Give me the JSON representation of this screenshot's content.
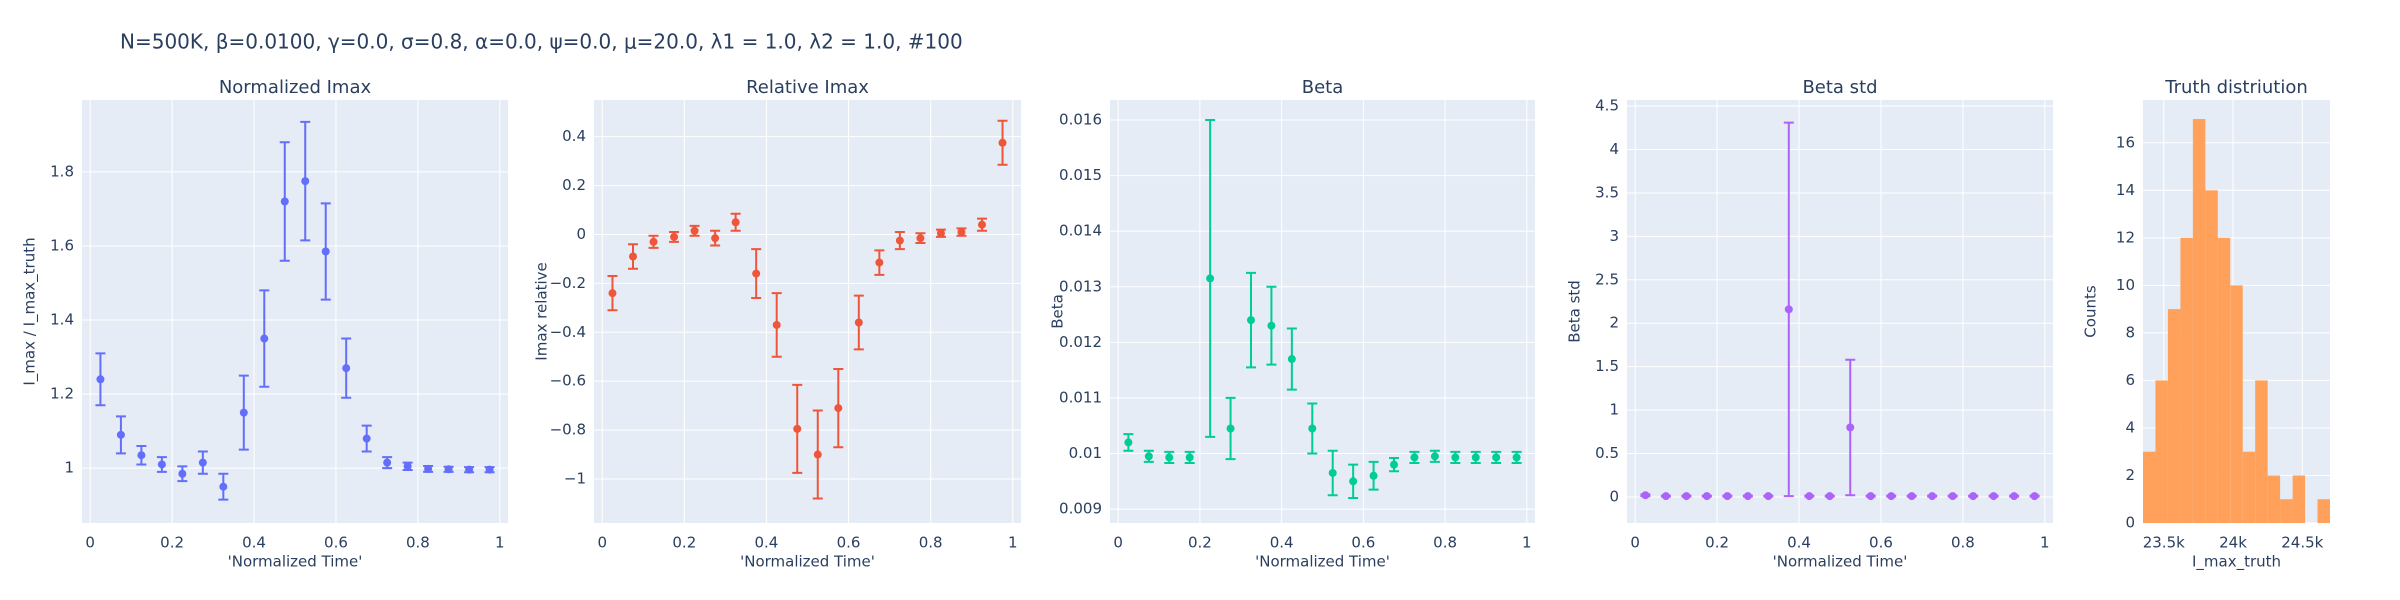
{
  "title": "N=500K, β=0.0100, γ=0.0, σ=0.8,  α=0.0, ψ=0.0, μ=20.0, λ1 = 1.0, λ2 = 1.0, #100",
  "chart_data": [
    {
      "type": "scatter",
      "title": "Normalized Imax",
      "x_label": "'Normalized Time'",
      "y_label": "I_max / I_max_truth",
      "color": "#636efa",
      "grid": true,
      "x": [
        0.025,
        0.075,
        0.125,
        0.175,
        0.225,
        0.275,
        0.325,
        0.375,
        0.425,
        0.475,
        0.525,
        0.575,
        0.625,
        0.675,
        0.725,
        0.775,
        0.825,
        0.875,
        0.925,
        0.975
      ],
      "values": [
        1.24,
        1.09,
        1.035,
        1.01,
        0.985,
        1.015,
        0.95,
        1.15,
        1.35,
        1.72,
        1.775,
        1.585,
        1.27,
        1.08,
        1.015,
        1.005,
        0.998,
        0.997,
        0.996,
        0.996
      ],
      "errors": [
        0.07,
        0.05,
        0.025,
        0.02,
        0.02,
        0.03,
        0.035,
        0.1,
        0.13,
        0.16,
        0.16,
        0.13,
        0.08,
        0.035,
        0.015,
        0.01,
        0.008,
        0.007,
        0.007,
        0.007
      ],
      "xlim": [
        -0.02,
        1.02
      ],
      "xticks": [
        0,
        0.2,
        0.4,
        0.6,
        0.8,
        1
      ],
      "ylim": [
        0.852,
        1.994
      ],
      "yticks": [
        1,
        1.2,
        1.4,
        1.6,
        1.8
      ]
    },
    {
      "type": "scatter",
      "title": "Relative Imax",
      "x_label": "'Normalized Time'",
      "y_label": "Imax relative",
      "color": "#EF553B",
      "grid": true,
      "x": [
        0.025,
        0.075,
        0.125,
        0.175,
        0.225,
        0.275,
        0.325,
        0.375,
        0.425,
        0.475,
        0.525,
        0.575,
        0.625,
        0.675,
        0.725,
        0.775,
        0.825,
        0.875,
        0.925,
        0.975
      ],
      "values": [
        -0.24,
        -0.09,
        -0.03,
        -0.01,
        0.015,
        -0.015,
        0.05,
        -0.16,
        -0.37,
        -0.795,
        -0.9,
        -0.71,
        -0.36,
        -0.115,
        -0.025,
        -0.015,
        0.005,
        0.01,
        0.04,
        0.375
      ],
      "errors": [
        0.07,
        0.05,
        0.025,
        0.02,
        0.02,
        0.03,
        0.035,
        0.1,
        0.13,
        0.18,
        0.18,
        0.16,
        0.11,
        0.05,
        0.035,
        0.02,
        0.015,
        0.015,
        0.025,
        0.09
      ],
      "xlim": [
        -0.02,
        1.02
      ],
      "xticks": [
        0,
        0.2,
        0.4,
        0.6,
        0.8,
        1
      ],
      "ylim": [
        -1.18,
        0.55
      ],
      "yticks": [
        {
          "value": -1,
          "label": "−1"
        },
        {
          "value": -0.8,
          "label": "−0.8"
        },
        {
          "value": -0.6,
          "label": "−0.6"
        },
        {
          "value": -0.4,
          "label": "−0.4"
        },
        {
          "value": -0.2,
          "label": "−0.2"
        },
        0,
        0.2,
        0.4
      ]
    },
    {
      "type": "scatter",
      "title": "Beta",
      "x_label": "'Normalized Time'",
      "y_label": "Beta",
      "color": "#00cc96",
      "grid": true,
      "x": [
        0.025,
        0.075,
        0.125,
        0.175,
        0.225,
        0.275,
        0.325,
        0.375,
        0.425,
        0.475,
        0.525,
        0.575,
        0.625,
        0.675,
        0.725,
        0.775,
        0.825,
        0.875,
        0.925,
        0.975
      ],
      "values": [
        0.0102,
        0.00995,
        0.00993,
        0.00993,
        0.01315,
        0.01045,
        0.0124,
        0.0123,
        0.0117,
        0.01045,
        0.00965,
        0.0095,
        0.0096,
        0.0098,
        0.00993,
        0.00995,
        0.00993,
        0.00993,
        0.00993,
        0.00993
      ],
      "errors": [
        0.00015,
        0.0001,
        0.0001,
        0.0001,
        0.00285,
        0.00055,
        0.00085,
        0.0007,
        0.00055,
        0.00045,
        0.0004,
        0.0003,
        0.00025,
        0.00012,
        0.0001,
        0.0001,
        0.0001,
        0.0001,
        0.0001,
        0.0001
      ],
      "xlim": [
        -0.02,
        1.02
      ],
      "xticks": [
        0,
        0.2,
        0.4,
        0.6,
        0.8,
        1
      ],
      "ylim": [
        0.00875,
        0.01636
      ],
      "yticks": [
        0.009,
        0.01,
        0.011,
        0.012,
        0.013,
        0.014,
        0.015,
        0.016
      ]
    },
    {
      "type": "scatter",
      "title": "Beta std",
      "x_label": "'Normalized Time'",
      "y_label": "Beta std",
      "color": "#ab63fa",
      "grid": true,
      "x": [
        0.025,
        0.075,
        0.125,
        0.175,
        0.225,
        0.275,
        0.325,
        0.375,
        0.425,
        0.475,
        0.525,
        0.575,
        0.625,
        0.675,
        0.725,
        0.775,
        0.825,
        0.875,
        0.925,
        0.975
      ],
      "values": [
        0.02,
        0.01,
        0.01,
        0.01,
        0.01,
        0.01,
        0.01,
        2.16,
        0.01,
        0.01,
        0.8,
        0.01,
        0.01,
        0.01,
        0.01,
        0.01,
        0.01,
        0.01,
        0.01,
        0.01
      ],
      "errors": [
        0.01,
        0.005,
        0.005,
        0.005,
        0.005,
        0.005,
        0.005,
        2.15,
        0.005,
        0.005,
        0.78,
        0.005,
        0.005,
        0.005,
        0.005,
        0.005,
        0.005,
        0.005,
        0.005,
        0.005
      ],
      "xlim": [
        -0.02,
        1.02
      ],
      "xticks": [
        0,
        0.2,
        0.4,
        0.6,
        0.8,
        1
      ],
      "ylim": [
        -0.3,
        4.57
      ],
      "yticks": [
        0,
        0.5,
        1,
        1.5,
        2,
        2.5,
        3,
        3.5,
        4,
        4.5
      ]
    },
    {
      "type": "histogram",
      "title": "Truth distriution",
      "x_label": "I_max_truth",
      "y_label": "Counts",
      "color": "#FFA15A",
      "grid": true,
      "bins": [
        23350,
        23440,
        23530,
        23620,
        23710,
        23800,
        23890,
        23980,
        24070,
        24160,
        24250,
        24340,
        24430,
        24520,
        24610,
        24700
      ],
      "counts": [
        3,
        6,
        9,
        12,
        17,
        14,
        12,
        10,
        3,
        6,
        2,
        1,
        2,
        0,
        1
      ],
      "xlim": [
        23350,
        24700
      ],
      "xticks": [
        {
          "value": 23500,
          "label": "23.5k"
        },
        {
          "value": 24000,
          "label": "24k"
        },
        {
          "value": 24500,
          "label": "24.5k"
        }
      ],
      "ylim": [
        0,
        17.8
      ],
      "yticks": [
        0,
        2,
        4,
        6,
        8,
        10,
        12,
        14,
        16
      ]
    }
  ]
}
